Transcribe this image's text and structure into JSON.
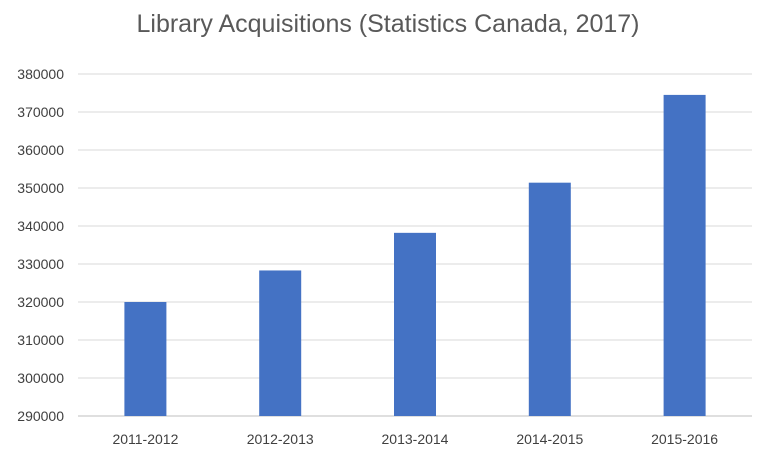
{
  "chart_data": {
    "type": "bar",
    "title": "Library Acquisitions (Statistics Canada, 2017)",
    "xlabel": "",
    "ylabel": "",
    "categories": [
      "2011-2012",
      "2012-2013",
      "2013-2014",
      "2014-2015",
      "2015-2016"
    ],
    "values": [
      320000,
      328300,
      338200,
      351400,
      374500
    ],
    "ylim": [
      290000,
      380000
    ],
    "yticks": [
      290000,
      300000,
      310000,
      320000,
      330000,
      340000,
      350000,
      360000,
      370000,
      380000
    ],
    "ytick_labels": [
      "290000",
      "300000",
      "310000",
      "320000",
      "330000",
      "340000",
      "350000",
      "360000",
      "370000",
      "380000"
    ],
    "grid": true,
    "legend": "none",
    "bar_color": "#4472c4"
  }
}
